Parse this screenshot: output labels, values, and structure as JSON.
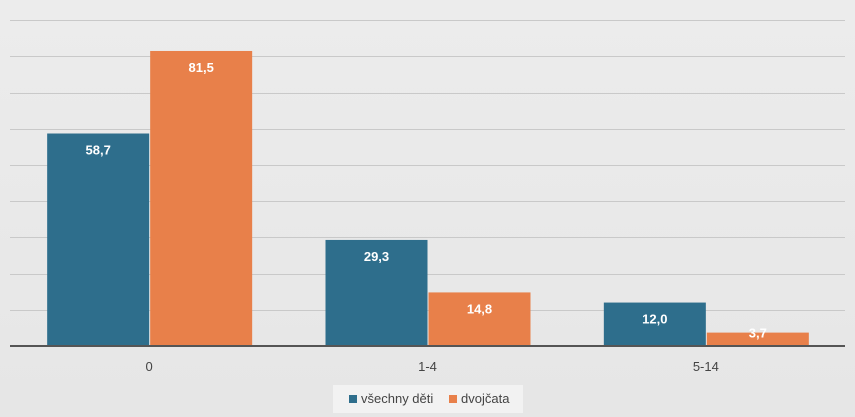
{
  "chart_data": {
    "type": "bar",
    "categories": [
      "0",
      "1-4",
      "5-14"
    ],
    "series": [
      {
        "name": "všechny děti",
        "color": "#2e6e8c",
        "values": [
          58.7,
          29.3,
          12.0
        ],
        "labels": [
          "58,7",
          "29,3",
          "12,0"
        ]
      },
      {
        "name": "dvojčata",
        "color": "#e8804a",
        "values": [
          81.5,
          14.8,
          3.7
        ],
        "labels": [
          "81,5",
          "14,8",
          "3,7"
        ]
      }
    ],
    "title": "",
    "xlabel": "",
    "ylabel": "",
    "ylim": [
      0,
      90
    ],
    "grid": true,
    "legend": "bottom",
    "data_label_color": "#ffffff"
  }
}
